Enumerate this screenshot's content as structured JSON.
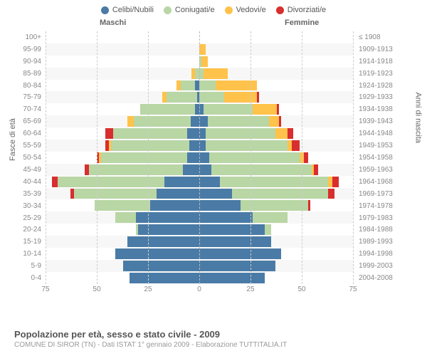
{
  "chart": {
    "type": "population-pyramid",
    "legend": [
      {
        "label": "Celibi/Nubili",
        "color": "#4a7ba6"
      },
      {
        "label": "Coniugati/e",
        "color": "#b9d6a5"
      },
      {
        "label": "Vedovi/e",
        "color": "#ffc24b"
      },
      {
        "label": "Divorziati/e",
        "color": "#d92e2e"
      }
    ],
    "header_male": "Maschi",
    "header_female": "Femmine",
    "ylabel_left": "Fasce di età",
    "ylabel_right": "Anni di nascita",
    "x_ticks": [
      75,
      50,
      25,
      0,
      25,
      50,
      75
    ],
    "x_max": 75,
    "background_color": "#f7f7f7",
    "grid_color": "#cccccc",
    "band_color": "#ffffff",
    "rows": [
      {
        "age": "100+",
        "birth": "≤ 1908",
        "m": [
          0,
          0,
          0,
          0
        ],
        "f": [
          0,
          0,
          0,
          0
        ]
      },
      {
        "age": "95-99",
        "birth": "1909-1913",
        "m": [
          0,
          0,
          0,
          0
        ],
        "f": [
          0,
          0,
          3,
          0
        ]
      },
      {
        "age": "90-94",
        "birth": "1914-1918",
        "m": [
          0,
          0,
          0,
          0
        ],
        "f": [
          0,
          1,
          3,
          0
        ]
      },
      {
        "age": "85-89",
        "birth": "1919-1923",
        "m": [
          0,
          2,
          2,
          0
        ],
        "f": [
          0,
          2,
          12,
          0
        ]
      },
      {
        "age": "80-84",
        "birth": "1924-1928",
        "m": [
          2,
          7,
          2,
          0
        ],
        "f": [
          0,
          8,
          20,
          0
        ]
      },
      {
        "age": "75-79",
        "birth": "1929-1933",
        "m": [
          1,
          15,
          2,
          0
        ],
        "f": [
          0,
          12,
          16,
          1
        ]
      },
      {
        "age": "70-74",
        "birth": "1934-1938",
        "m": [
          2,
          27,
          0,
          0
        ],
        "f": [
          2,
          24,
          12,
          1
        ]
      },
      {
        "age": "65-69",
        "birth": "1939-1943",
        "m": [
          4,
          28,
          3,
          0
        ],
        "f": [
          4,
          30,
          5,
          1
        ]
      },
      {
        "age": "60-64",
        "birth": "1944-1948",
        "m": [
          6,
          36,
          0,
          4
        ],
        "f": [
          3,
          34,
          6,
          3
        ]
      },
      {
        "age": "55-59",
        "birth": "1949-1953",
        "m": [
          5,
          38,
          1,
          2
        ],
        "f": [
          3,
          40,
          2,
          4
        ]
      },
      {
        "age": "50-54",
        "birth": "1954-1958",
        "m": [
          6,
          42,
          1,
          1
        ],
        "f": [
          5,
          44,
          2,
          2
        ]
      },
      {
        "age": "45-49",
        "birth": "1959-1963",
        "m": [
          8,
          46,
          0,
          2
        ],
        "f": [
          6,
          49,
          1,
          2
        ]
      },
      {
        "age": "40-44",
        "birth": "1964-1968",
        "m": [
          17,
          52,
          0,
          3
        ],
        "f": [
          10,
          53,
          2,
          3
        ]
      },
      {
        "age": "35-39",
        "birth": "1969-1973",
        "m": [
          21,
          40,
          0,
          2
        ],
        "f": [
          16,
          47,
          0,
          3
        ]
      },
      {
        "age": "30-34",
        "birth": "1974-1978",
        "m": [
          24,
          27,
          0,
          0
        ],
        "f": [
          20,
          33,
          0,
          1
        ]
      },
      {
        "age": "25-29",
        "birth": "1979-1983",
        "m": [
          31,
          10,
          0,
          0
        ],
        "f": [
          26,
          17,
          0,
          0
        ]
      },
      {
        "age": "20-24",
        "birth": "1984-1988",
        "m": [
          30,
          1,
          0,
          0
        ],
        "f": [
          32,
          3,
          0,
          0
        ]
      },
      {
        "age": "15-19",
        "birth": "1989-1993",
        "m": [
          35,
          0,
          0,
          0
        ],
        "f": [
          35,
          0,
          0,
          0
        ]
      },
      {
        "age": "10-14",
        "birth": "1994-1998",
        "m": [
          41,
          0,
          0,
          0
        ],
        "f": [
          40,
          0,
          0,
          0
        ]
      },
      {
        "age": "5-9",
        "birth": "1999-2003",
        "m": [
          37,
          0,
          0,
          0
        ],
        "f": [
          37,
          0,
          0,
          0
        ]
      },
      {
        "age": "0-4",
        "birth": "2004-2008",
        "m": [
          34,
          0,
          0,
          0
        ],
        "f": [
          32,
          0,
          0,
          0
        ]
      }
    ]
  },
  "footer": {
    "title": "Popolazione per età, sesso e stato civile - 2009",
    "subtitle": "COMUNE DI SIROR (TN) - Dati ISTAT 1° gennaio 2009 - Elaborazione TUTTITALIA.IT"
  }
}
